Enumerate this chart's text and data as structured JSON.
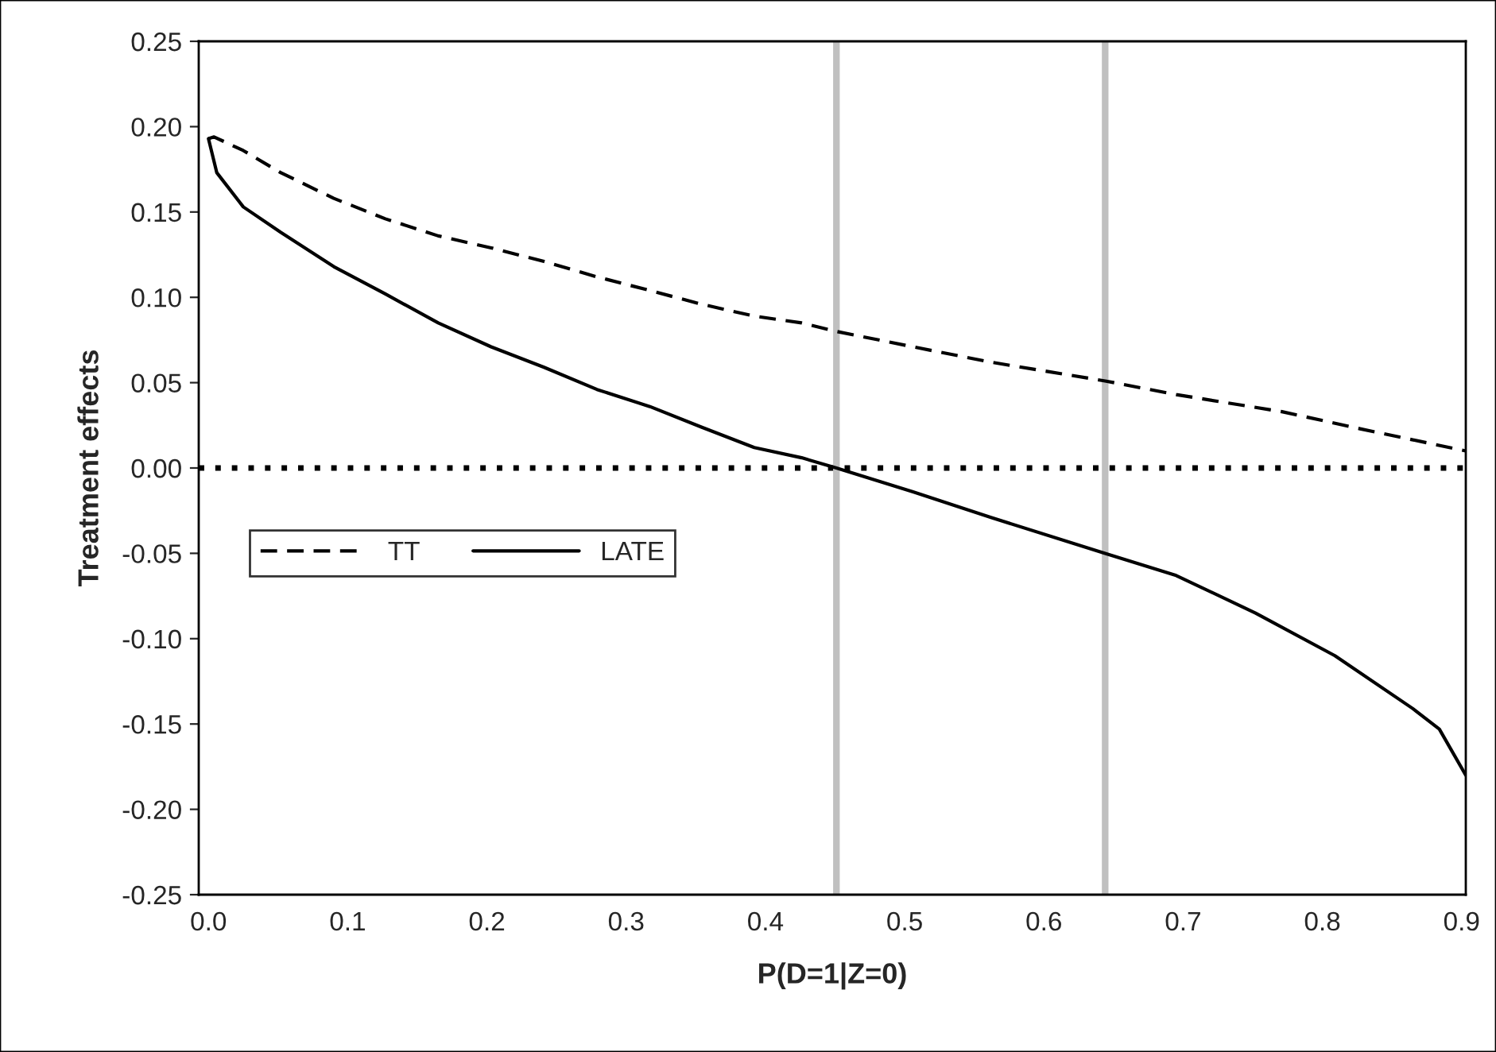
{
  "chart_data": {
    "type": "line",
    "xlabel": "P(D=1|Z=0)",
    "ylabel": "Treatment effects",
    "xlim": [
      -0.007,
      0.903
    ],
    "xticks": [
      {
        "value": 0,
        "label": "0.0"
      },
      0.1,
      0.2,
      0.3,
      0.4,
      0.5,
      0.6,
      0.7,
      0.8,
      0.9
    ],
    "ylim": [
      -0.25,
      0.25
    ],
    "yticks": [
      {
        "value": -0.25,
        "label": "-0.25"
      },
      {
        "value": -0.2,
        "label": "-0.20"
      },
      {
        "value": -0.15,
        "label": "-0.15"
      },
      {
        "value": -0.1,
        "label": "-0.10"
      },
      {
        "value": -0.05,
        "label": "-0.05"
      },
      {
        "value": 0,
        "label": "0.00"
      },
      {
        "value": 0.05,
        "label": "0.05"
      },
      {
        "value": 0.1,
        "label": "0.10"
      },
      {
        "value": 0.15,
        "label": "0.15"
      },
      {
        "value": 0.2,
        "label": "0.20"
      },
      {
        "value": 0.25,
        "label": "0.25"
      }
    ],
    "grid": false,
    "legend": "center left",
    "marker": "none",
    "series": [
      {
        "name": "TT",
        "color": "#000000",
        "line_style": "dashed",
        "x": [
          0.0,
          0.004,
          0.025,
          0.052,
          0.09,
          0.127,
          0.165,
          0.203,
          0.241,
          0.279,
          0.317,
          0.354,
          0.392,
          0.426,
          0.451,
          0.506,
          0.562,
          0.644,
          0.695,
          0.771,
          0.827,
          0.903
        ],
        "values": [
          0.193,
          0.194,
          0.186,
          0.173,
          0.158,
          0.146,
          0.136,
          0.129,
          0.121,
          0.112,
          0.104,
          0.096,
          0.089,
          0.085,
          0.08,
          0.071,
          0.062,
          0.051,
          0.043,
          0.033,
          0.023,
          0.01
        ]
      },
      {
        "name": "LATE",
        "color": "#000000",
        "line_style": "solid",
        "x": [
          0.0,
          0.006,
          0.025,
          0.052,
          0.09,
          0.127,
          0.165,
          0.203,
          0.241,
          0.279,
          0.317,
          0.354,
          0.392,
          0.426,
          0.451,
          0.506,
          0.562,
          0.644,
          0.695,
          0.752,
          0.809,
          0.865,
          0.884,
          0.903
        ],
        "values": [
          0.193,
          0.173,
          0.153,
          0.138,
          0.118,
          0.102,
          0.085,
          0.071,
          0.059,
          0.046,
          0.036,
          0.024,
          0.012,
          0.006,
          0.0,
          -0.014,
          -0.029,
          -0.05,
          -0.063,
          -0.085,
          -0.11,
          -0.141,
          -0.153,
          -0.18
        ]
      }
    ],
    "ref_lines": [
      {
        "axis": "y",
        "value": 0,
        "color": "#000000",
        "line_style": "dotted"
      },
      {
        "axis": "x",
        "value": 0.451,
        "color": "#c0c0c0",
        "line_style": "solid"
      },
      {
        "axis": "x",
        "value": 0.644,
        "color": "#c0c0c0",
        "line_style": "solid"
      }
    ]
  }
}
